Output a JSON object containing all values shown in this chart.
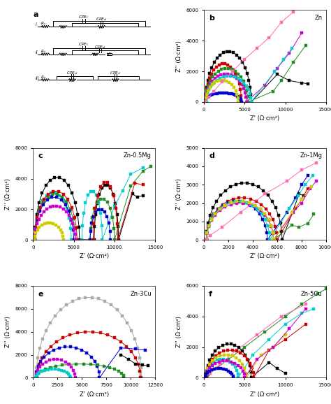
{
  "panels": {
    "b": {
      "title": "Zn",
      "xlim": [
        0,
        15000
      ],
      "ylim": [
        0,
        6000
      ],
      "xlabel": "Z' (Ω·cm²)",
      "ylabel": "Z’’ (Ω·cm²)",
      "xticks": [
        0,
        5000,
        10000,
        15000
      ],
      "yticks": [
        0,
        2000,
        4000,
        6000
      ]
    },
    "c": {
      "title": "Zn-0.5Mg",
      "xlim": [
        0,
        15000
      ],
      "ylim": [
        0,
        6000
      ],
      "xlabel": "Z' (Ω·cm²)",
      "ylabel": "Z’’ (Ω·cm²)",
      "xticks": [
        0,
        5000,
        10000,
        15000
      ],
      "yticks": [
        0,
        2000,
        4000,
        6000
      ]
    },
    "d": {
      "title": "Zn-1Mg",
      "xlim": [
        0,
        10000
      ],
      "ylim": [
        0,
        5000
      ],
      "xlabel": "Z' (Ω·cm²)",
      "ylabel": "Z’’ (Ω·cm²)",
      "xticks": [
        0,
        2000,
        4000,
        6000,
        8000,
        10000
      ],
      "yticks": [
        0,
        1000,
        2000,
        3000,
        4000,
        5000
      ]
    },
    "e": {
      "title": "Zn-3Cu",
      "xlim": [
        0,
        12500
      ],
      "ylim": [
        0,
        8000
      ],
      "xlabel": "Z' (Ω·cm²)",
      "ylabel": "Z’’ (Ω·cm²)",
      "xticks": [
        0,
        2500,
        5000,
        7500,
        10000,
        12500
      ],
      "yticks": [
        0,
        2000,
        4000,
        6000,
        8000
      ]
    },
    "f": {
      "title": "Zn-5Cu",
      "xlim": [
        0,
        15000
      ],
      "ylim": [
        0,
        6000
      ],
      "xlabel": "Z' (Ω·cm²)",
      "ylabel": "Z’’ (Ω·cm²)",
      "xticks": [
        0,
        5000,
        10000,
        15000
      ],
      "yticks": [
        0,
        2000,
        4000,
        6000
      ]
    }
  }
}
